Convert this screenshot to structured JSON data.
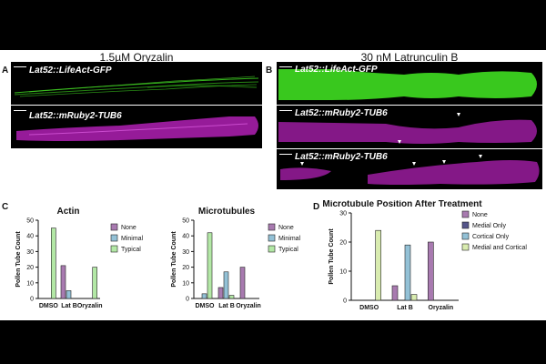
{
  "figure": {
    "headings": {
      "left": "1.5µM Oryzalin",
      "right": "30 nM Latrunculin B"
    },
    "panel_letters": {
      "a": "A",
      "b": "B",
      "c": "C",
      "d": "D"
    },
    "image_labels": {
      "a_top": "Lat52::LifeAct-GFP",
      "a_bottom": "Lat52::mRuby2-TUB6",
      "b_top": "Lat52::LifeAct-GFP",
      "b_mid": "Lat52::mRuby2-TUB6",
      "b_bottom": "Lat52::mRuby2-TUB6"
    },
    "colors": {
      "background": "#000000",
      "actin_green": "#39c81e",
      "tubulin_magenta": "#b020b4"
    }
  },
  "chart_data": [
    {
      "type": "bar",
      "title": "Actin",
      "ylabel": "Pollen Tube Count",
      "xlabel": "",
      "categories": [
        "DMSO",
        "Lat B",
        "Oryzalin"
      ],
      "ylim": [
        0,
        50
      ],
      "yticks": [
        0,
        10,
        20,
        30,
        40,
        50
      ],
      "legend_position": "right",
      "series": [
        {
          "name": "None",
          "color": "#a87ab0",
          "values": [
            0,
            21,
            0
          ]
        },
        {
          "name": "Minimal",
          "color": "#93c1d6",
          "values": [
            0,
            5,
            0
          ]
        },
        {
          "name": "Typical",
          "color": "#b3e8a6",
          "values": [
            45,
            0,
            20
          ]
        }
      ]
    },
    {
      "type": "bar",
      "title": "Microtubules",
      "ylabel": "Pollen Tube Count",
      "xlabel": "",
      "categories": [
        "DMSO",
        "Lat B",
        "Oryzalin"
      ],
      "ylim": [
        0,
        50
      ],
      "yticks": [
        0,
        10,
        20,
        30,
        40,
        50
      ],
      "legend_position": "right",
      "series": [
        {
          "name": "None",
          "color": "#a87ab0",
          "values": [
            0,
            7,
            20
          ]
        },
        {
          "name": "Minimal",
          "color": "#93c1d6",
          "values": [
            3,
            17,
            0
          ]
        },
        {
          "name": "Typical",
          "color": "#b3e8a6",
          "values": [
            42,
            2,
            0
          ]
        }
      ]
    },
    {
      "type": "bar",
      "title": "Microtubule Position After Treatment",
      "ylabel": "Pollen Tube Count",
      "xlabel": "",
      "categories": [
        "DMSO",
        "Lat B",
        "Oryzalin"
      ],
      "ylim": [
        0,
        30
      ],
      "yticks": [
        0,
        10,
        20,
        30
      ],
      "legend_position": "right",
      "series": [
        {
          "name": "None",
          "color": "#a87ab0",
          "values": [
            0,
            5,
            20
          ]
        },
        {
          "name": "Medial Only",
          "color": "#55558a",
          "values": [
            0,
            0,
            0
          ]
        },
        {
          "name": "Cortical Only",
          "color": "#93c1d6",
          "values": [
            0,
            19,
            0
          ]
        },
        {
          "name": "Medial and Cortical",
          "color": "#d9ecb0",
          "values": [
            24,
            2,
            0
          ]
        }
      ]
    }
  ]
}
